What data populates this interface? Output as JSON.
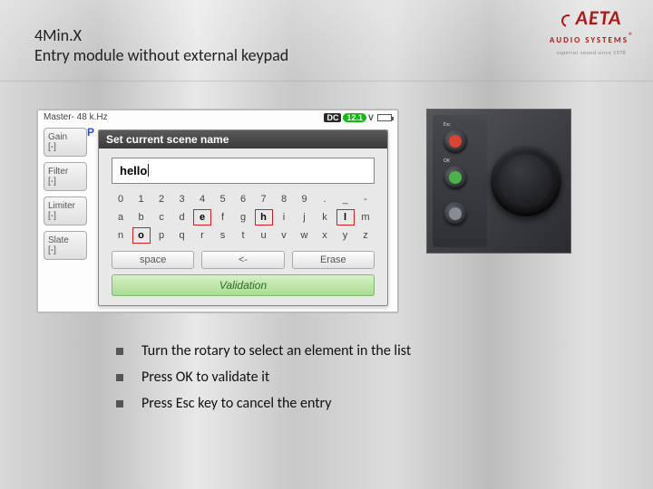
{
  "meta": {
    "background_gradient": [
      "#d8d8d8",
      "#c0c0c0",
      "#e8e8e8",
      "#c8c8c8",
      "#dcdcdc",
      "#bcbcbc",
      "#e0e0e0",
      "#d0d0d0"
    ]
  },
  "header": {
    "title_line1": "4Min.X",
    "title_line2": "Entry module without external keypad",
    "title_fontsize": 18,
    "title_color": "#222222"
  },
  "logo": {
    "brand": "AETA",
    "subline": "AUDIO SYSTEMS",
    "registered": "®",
    "tagline": "superior sound since 1978",
    "brand_color": "#b01818"
  },
  "device": {
    "topbar": {
      "master_text": "Master- 48 k.Hz",
      "dc_label": "DC",
      "dc_value": "12.1",
      "dc_unit": "V",
      "dc_value_bg": "#16b716"
    },
    "side_buttons": [
      {
        "line1": "Gain",
        "line2": "[-]"
      },
      {
        "line1": "Filter",
        "line2": "[-]"
      },
      {
        "line1": "Limiter",
        "line2": "[-]"
      },
      {
        "line1": "Slate",
        "line2": "[-]"
      }
    ],
    "p_letter": "P",
    "dialog": {
      "title": "Set current scene name",
      "input_value": "hello",
      "char_rows": [
        [
          "0",
          "1",
          "2",
          "3",
          "4",
          "5",
          "6",
          "7",
          "8",
          "9",
          ".",
          "_",
          "-"
        ],
        [
          "a",
          "b",
          "c",
          "d",
          "e",
          "f",
          "g",
          "h",
          "i",
          "j",
          "k",
          "l",
          "m"
        ],
        [
          "n",
          "o",
          "p",
          "q",
          "r",
          "s",
          "t",
          "u",
          "v",
          "w",
          "x",
          "y",
          "z"
        ]
      ],
      "highlighted_chars": [
        "e",
        "h",
        "l",
        "o"
      ],
      "highlight_border": "#d02020",
      "button_row": [
        "space",
        "<-",
        "Erase"
      ],
      "validate_label": "Validation",
      "validate_bg": [
        "#d6f0c6",
        "#a8dc8e"
      ]
    }
  },
  "hardware": {
    "buttons": [
      {
        "name": "esc",
        "color": "#d84430",
        "label": "Esc"
      },
      {
        "name": "ok",
        "color": "#4ab34a",
        "label": "OK"
      },
      {
        "name": "nav",
        "color": "#888c92",
        "label": ""
      }
    ],
    "knob_color": "#0c0c0e"
  },
  "bullets": [
    "Turn the rotary to select an element in the list",
    "Press OK to validate it",
    "Press Esc key to cancel the entry"
  ]
}
